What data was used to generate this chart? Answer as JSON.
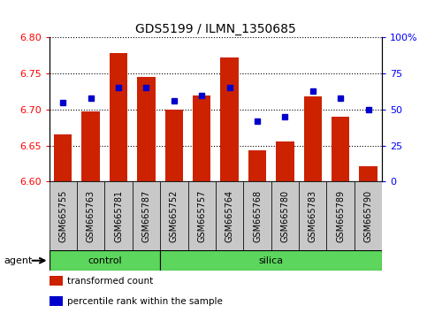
{
  "title": "GDS5199 / ILMN_1350685",
  "samples": [
    "GSM665755",
    "GSM665763",
    "GSM665781",
    "GSM665787",
    "GSM665752",
    "GSM665757",
    "GSM665764",
    "GSM665768",
    "GSM665780",
    "GSM665783",
    "GSM665789",
    "GSM665790"
  ],
  "transformed_count": [
    6.665,
    6.698,
    6.778,
    6.745,
    6.7,
    6.72,
    6.772,
    6.643,
    6.656,
    6.718,
    6.69,
    6.621
  ],
  "percentile_rank": [
    55,
    58,
    65,
    65,
    56,
    60,
    65,
    42,
    45,
    63,
    58,
    50
  ],
  "ymin": 6.6,
  "ymax": 6.8,
  "y2min": 0,
  "y2max": 100,
  "yticks": [
    6.6,
    6.65,
    6.7,
    6.75,
    6.8
  ],
  "y2ticks": [
    0,
    25,
    50,
    75,
    100
  ],
  "y2ticklabels": [
    "0",
    "25",
    "50",
    "75",
    "100%"
  ],
  "bar_color": "#cc2200",
  "dot_color": "#0000cc",
  "bar_bottom": 6.6,
  "agent_label": "agent",
  "legend_labels": [
    "transformed count",
    "percentile rank within the sample"
  ],
  "legend_colors": [
    "#cc2200",
    "#0000cc"
  ],
  "grid_style": "dotted",
  "background_color": "#ffffff",
  "tick_box_color": "#c8c8c8",
  "green_color": "#5cd65c",
  "control_count": 4,
  "silica_count": 8,
  "control_label": "control",
  "silica_label": "silica"
}
